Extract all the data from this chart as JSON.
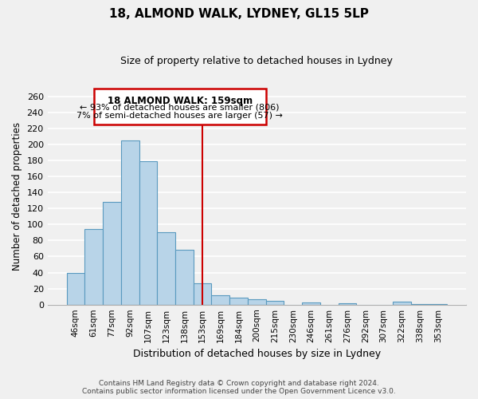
{
  "title": "18, ALMOND WALK, LYDNEY, GL15 5LP",
  "subtitle": "Size of property relative to detached houses in Lydney",
  "xlabel": "Distribution of detached houses by size in Lydney",
  "ylabel": "Number of detached properties",
  "categories": [
    "46sqm",
    "61sqm",
    "77sqm",
    "92sqm",
    "107sqm",
    "123sqm",
    "138sqm",
    "153sqm",
    "169sqm",
    "184sqm",
    "200sqm",
    "215sqm",
    "230sqm",
    "246sqm",
    "261sqm",
    "276sqm",
    "292sqm",
    "307sqm",
    "322sqm",
    "338sqm",
    "353sqm"
  ],
  "values": [
    40,
    94,
    128,
    205,
    179,
    90,
    68,
    27,
    12,
    9,
    7,
    5,
    0,
    3,
    0,
    2,
    0,
    0,
    4,
    1,
    1
  ],
  "bar_color": "#b8d4e8",
  "bar_edge_color": "#5a9abf",
  "vline_x": 7.5,
  "vline_color": "#cc0000",
  "ylim": [
    0,
    270
  ],
  "yticks": [
    0,
    20,
    40,
    60,
    80,
    100,
    120,
    140,
    160,
    180,
    200,
    220,
    240,
    260
  ],
  "annotation_title": "18 ALMOND WALK: 159sqm",
  "annotation_line1": "← 93% of detached houses are smaller (806)",
  "annotation_line2": "7% of semi-detached houses are larger (57) →",
  "annotation_box_color": "#ffffff",
  "annotation_box_edge": "#cc0000",
  "footer_line1": "Contains HM Land Registry data © Crown copyright and database right 2024.",
  "footer_line2": "Contains public sector information licensed under the Open Government Licence v3.0.",
  "background_color": "#f0f0f0",
  "grid_color": "#ffffff"
}
